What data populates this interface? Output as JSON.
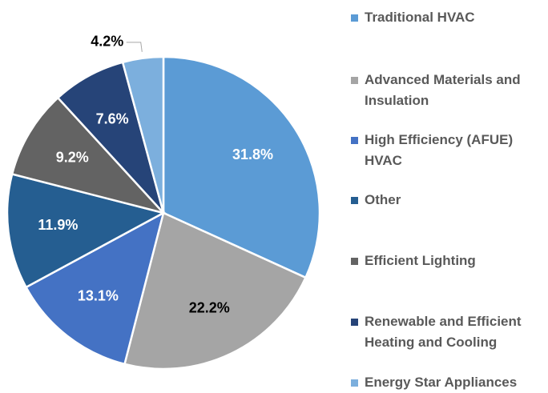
{
  "chart_data": {
    "type": "pie",
    "categories": [
      "Traditional HVAC",
      "Advanced Materials and Insulation",
      "High Efficiency (AFUE) HVAC",
      "Other",
      "Efficient Lighting",
      "Renewable and Efficient Heating and Cooling",
      "Energy Star Appliances"
    ],
    "values": [
      31.8,
      22.2,
      13.1,
      11.9,
      9.2,
      7.6,
      4.2
    ],
    "value_labels": [
      "31.8%",
      "22.2%",
      "13.1%",
      "11.9%",
      "9.2%",
      "7.6%",
      "4.2%"
    ],
    "colors": [
      "#5b9bd5",
      "#a5a5a5",
      "#4472c4",
      "#255e91",
      "#636363",
      "#264478",
      "#7cafdd"
    ],
    "label_colors": [
      "#ffffff",
      "#000000",
      "#ffffff",
      "#ffffff",
      "#ffffff",
      "#ffffff",
      "#000000"
    ],
    "legend": "right"
  }
}
